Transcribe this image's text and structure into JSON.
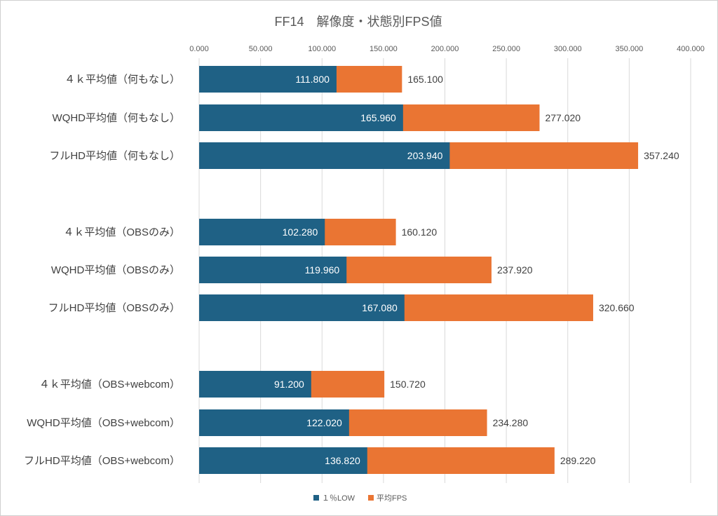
{
  "chart_data": {
    "type": "bar",
    "orientation": "horizontal",
    "stacked": "overlay",
    "title": "FF14　解像度・状態別FPS値",
    "xlabel": "",
    "ylabel": "",
    "xlim": [
      0,
      400
    ],
    "x_ticks": [
      0,
      50,
      100,
      150,
      200,
      250,
      300,
      350,
      400
    ],
    "x_tick_labels": [
      "0.000",
      "50.000",
      "100.000",
      "150.000",
      "200.000",
      "250.000",
      "300.000",
      "350.000",
      "400.000"
    ],
    "grid": "vertical",
    "legend_position": "bottom",
    "categories": [
      "４ｋ平均値（何もなし）",
      "WQHD平均値（何もなし）",
      "フルHD平均値（何もなし）",
      "４ｋ平均値（OBSのみ）",
      "WQHD平均値（OBSのみ）",
      "フルHD平均値（OBSのみ）",
      "４ｋ平均値（OBS+webcom）",
      "WQHD平均値（OBS+webcom）",
      "フルHD平均値（OBS+webcom）"
    ],
    "groups": [
      [
        0,
        1,
        2
      ],
      [
        3,
        4,
        5
      ],
      [
        6,
        7,
        8
      ]
    ],
    "series": [
      {
        "name": "１％LOW",
        "color": "#1f6185",
        "values": [
          111.8,
          165.96,
          203.94,
          102.28,
          119.96,
          167.08,
          91.2,
          122.02,
          136.82
        ],
        "labels": [
          "111.800",
          "165.960",
          "203.940",
          "102.280",
          "119.960",
          "167.080",
          "91.200",
          "122.020",
          "136.820"
        ]
      },
      {
        "name": "平均FPS",
        "color": "#ea7533",
        "values": [
          165.1,
          277.02,
          357.24,
          160.12,
          237.92,
          320.66,
          150.72,
          234.28,
          289.22
        ],
        "labels": [
          "165.100",
          "277.020",
          "357.240",
          "160.120",
          "237.920",
          "320.660",
          "150.720",
          "234.280",
          "289.220"
        ]
      }
    ]
  }
}
